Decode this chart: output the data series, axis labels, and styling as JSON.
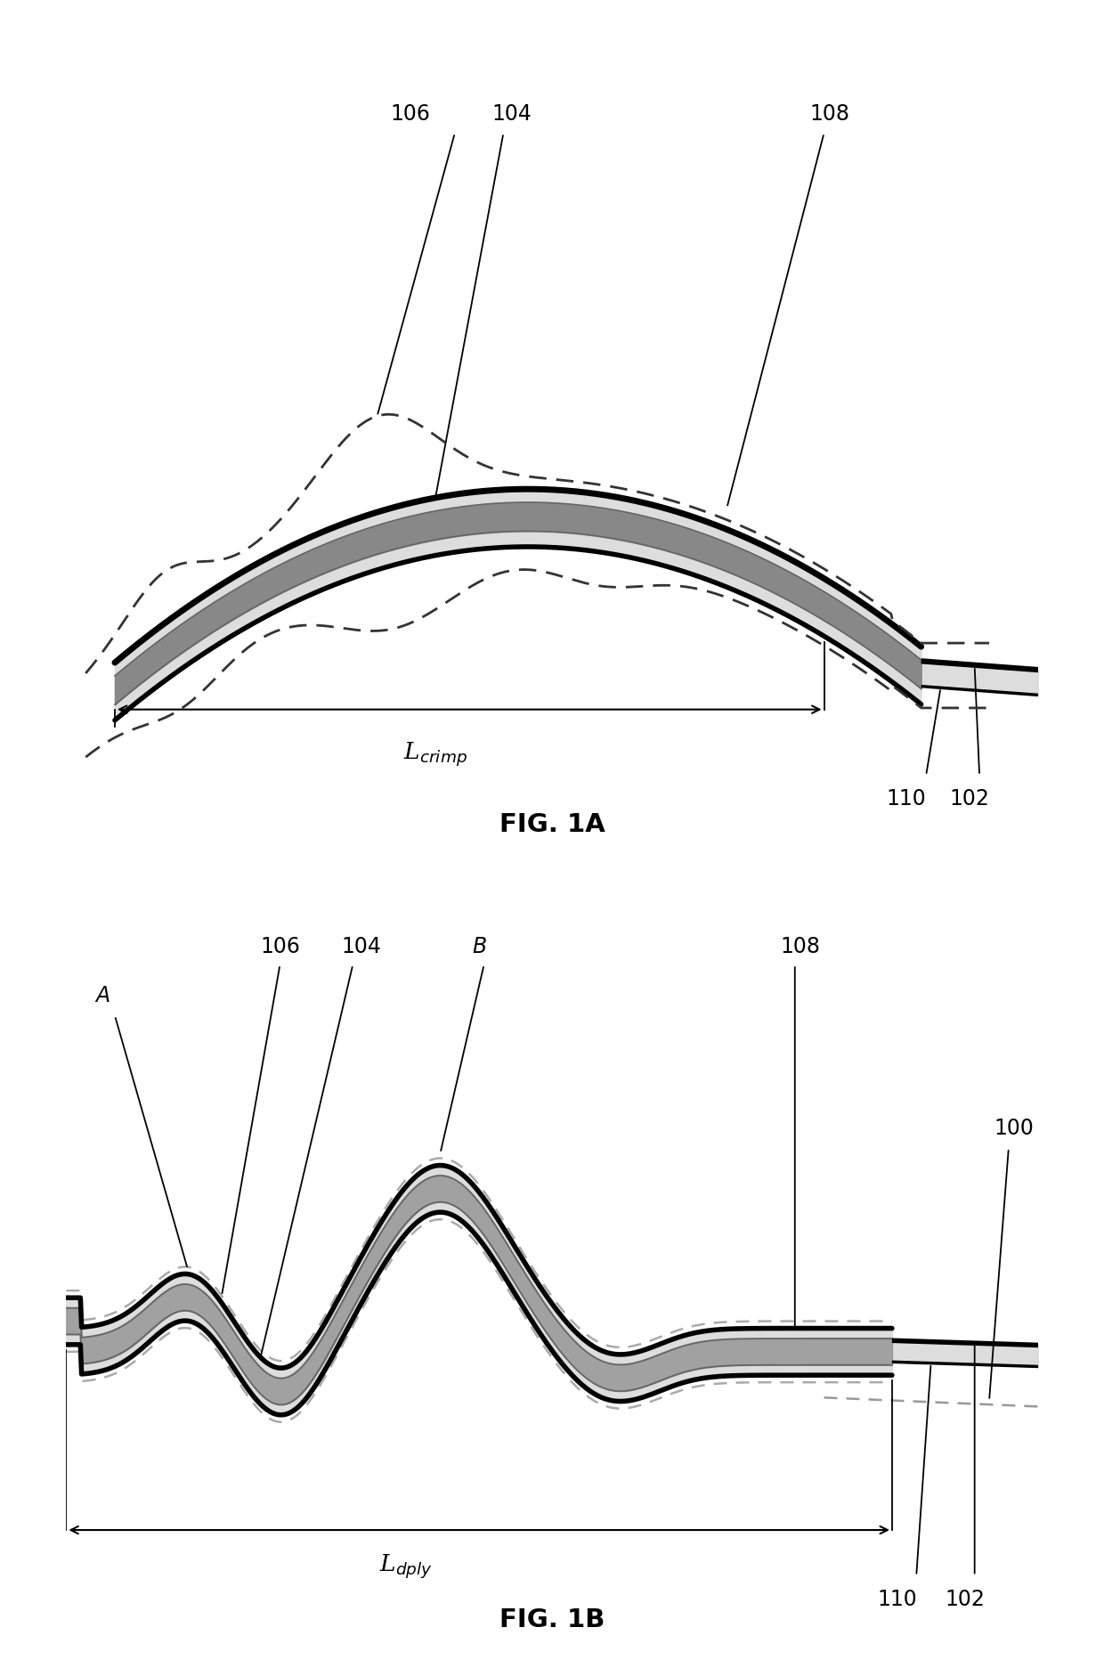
{
  "fig_title_1": "FIG. 1A",
  "fig_title_2": "FIG. 1B",
  "label_106": "106",
  "label_104": "104",
  "label_108": "108",
  "label_110": "110",
  "label_102": "102",
  "label_100": "100",
  "label_A": "A",
  "label_B": "B",
  "L_crimp": "L$_{crimp}$",
  "L_dply": "L$_{dply}$",
  "bg": "#ffffff",
  "black": "#000000",
  "gray1": "#888888",
  "gray2": "#bbbbbb",
  "gray3": "#dddddd",
  "dashed_color": "#333333",
  "fig_width": 12.4,
  "fig_height": 18.65
}
